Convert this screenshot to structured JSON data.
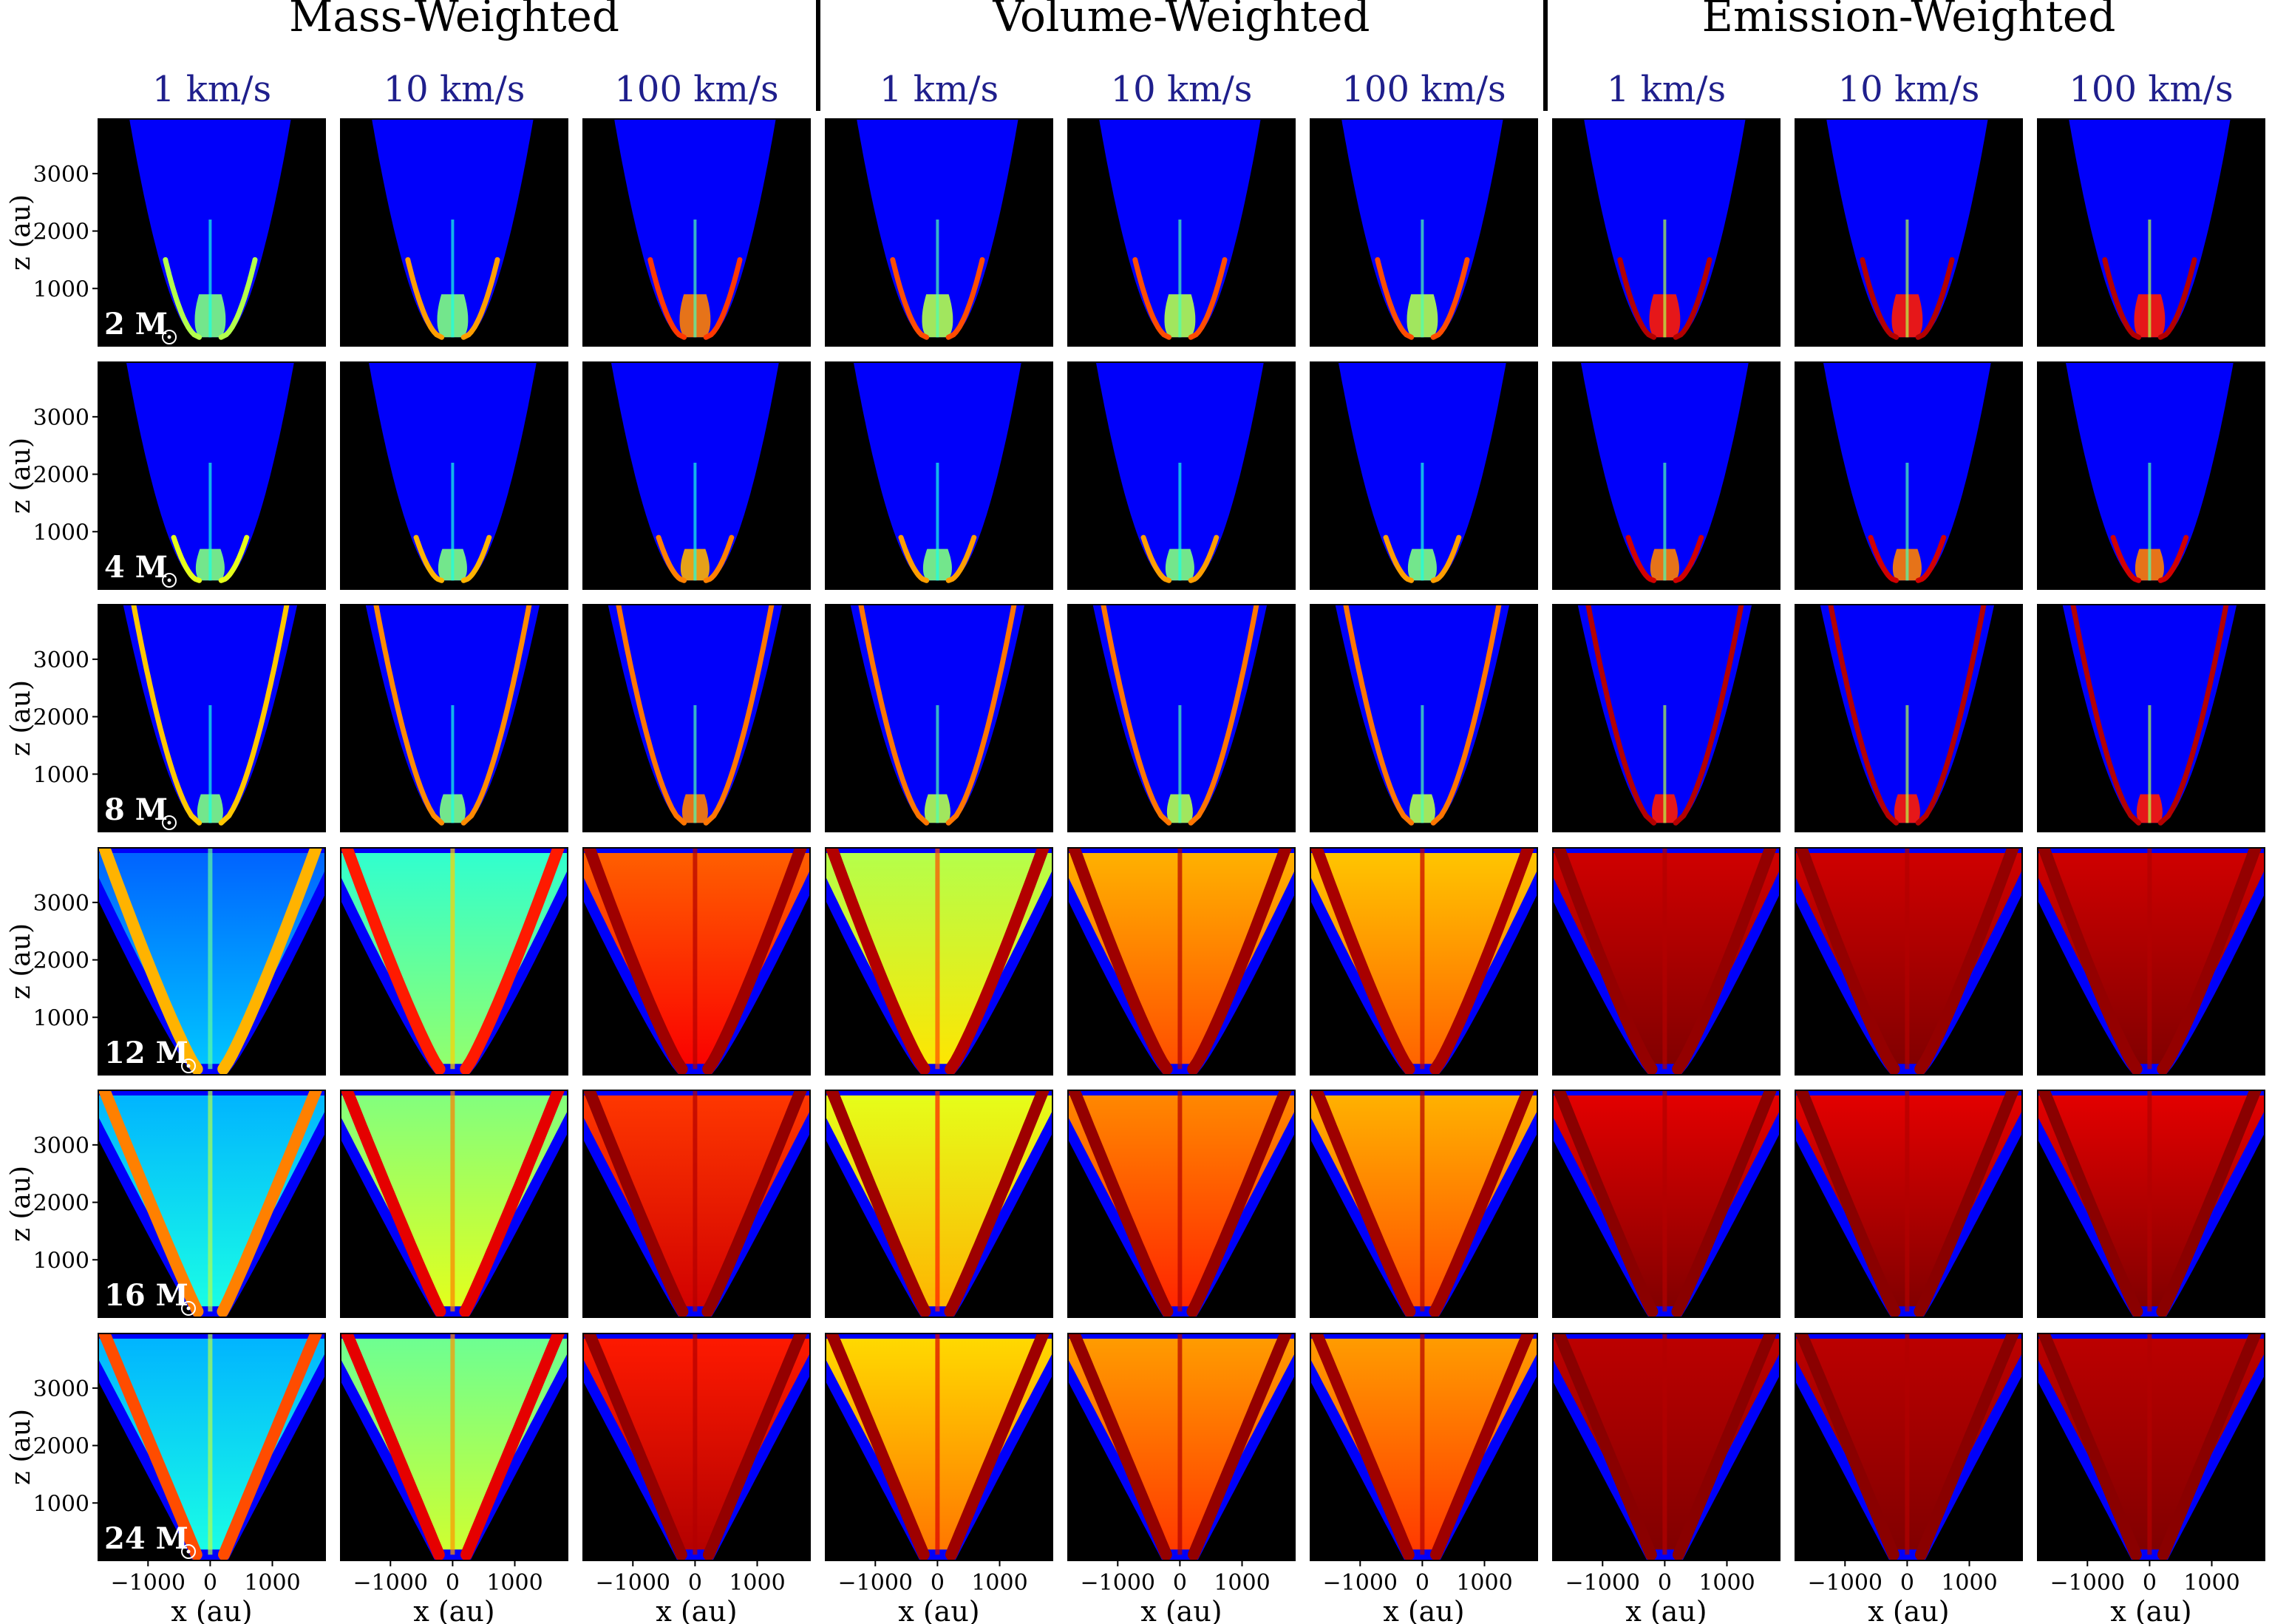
{
  "figure": {
    "group_titles": [
      "Mass-Weighted",
      "Volume-Weighted",
      "Emission-Weighted"
    ],
    "column_labels": [
      "1 km/s",
      "10 km/s",
      "100 km/s",
      "1 km/s",
      "10 km/s",
      "100 km/s",
      "1 km/s",
      "10 km/s",
      "100 km/s"
    ],
    "column_label_color": "#1f1f8c"
  },
  "chart_data": {
    "type": "heatmap",
    "layout": "grid",
    "rows": 6,
    "cols": 9,
    "group_titles": [
      "Mass-Weighted",
      "Volume-Weighted",
      "Emission-Weighted"
    ],
    "columns": [
      {
        "group": "Mass-Weighted",
        "label": "1 km/s"
      },
      {
        "group": "Mass-Weighted",
        "label": "10 km/s"
      },
      {
        "group": "Mass-Weighted",
        "label": "100 km/s"
      },
      {
        "group": "Volume-Weighted",
        "label": "1 km/s"
      },
      {
        "group": "Volume-Weighted",
        "label": "10 km/s"
      },
      {
        "group": "Volume-Weighted",
        "label": "100 km/s"
      },
      {
        "group": "Emission-Weighted",
        "label": "1 km/s"
      },
      {
        "group": "Emission-Weighted",
        "label": "10 km/s"
      },
      {
        "group": "Emission-Weighted",
        "label": "100 km/s"
      }
    ],
    "rows_data": [
      {
        "label": "2 M",
        "base": "2",
        "unit": "M",
        "mass": 2
      },
      {
        "label": "4 M",
        "base": "4",
        "unit": "M",
        "mass": 4
      },
      {
        "label": "8 M",
        "base": "8",
        "unit": "M",
        "mass": 8
      },
      {
        "label": "12 M",
        "base": "12",
        "unit": "M",
        "mass": 12
      },
      {
        "label": "16 M",
        "base": "16",
        "unit": "M",
        "mass": 16
      },
      {
        "label": "24 M",
        "base": "24",
        "unit": "M",
        "mass": 24
      }
    ],
    "xlabel": "x (au)",
    "ylabel": "z (au)",
    "xlim": [
      -1800,
      1850
    ],
    "ylim": [
      0,
      3950
    ],
    "xticks": [
      -1000,
      0,
      1000
    ],
    "xtick_labels": [
      "−1000",
      "0",
      "1000"
    ],
    "yticks": [
      1000,
      2000,
      3000
    ],
    "ytick_labels": [
      "1000",
      "2000",
      "3000"
    ],
    "colormap": "jet",
    "background_color": "#000000",
    "grid": false
  }
}
